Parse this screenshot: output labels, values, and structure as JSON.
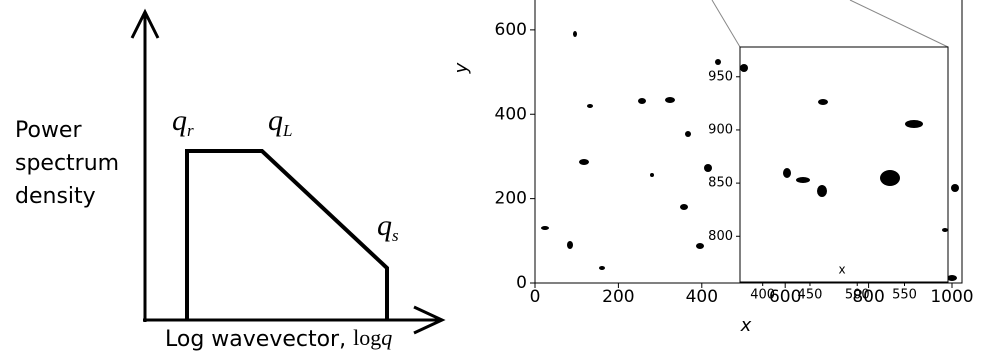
{
  "diagram": {
    "y_label": [
      "Power",
      "spectrum",
      "density"
    ],
    "x_label": "Log wavevector,",
    "x_label_math": {
      "function": "log",
      "variable": "q"
    },
    "points": [
      {
        "symbol": "q",
        "subscript": "r"
      },
      {
        "symbol": "q",
        "subscript": "L"
      },
      {
        "symbol": "q",
        "subscript": "s"
      }
    ]
  },
  "chart_data": {
    "type": "image",
    "xlabel": "x",
    "ylabel": "y",
    "xlim": [
      0,
      1024
    ],
    "ylim": [
      0,
      1024
    ],
    "xticks": [
      0,
      200,
      400,
      600,
      800,
      1000
    ],
    "yticks": [
      0,
      200,
      400,
      600
    ],
    "inset": {
      "xlabel": "x",
      "xlim": [
        376,
        596
      ],
      "ylim": [
        757,
        978
      ],
      "xticks": [
        400,
        450,
        500,
        550
      ],
      "yticks": [
        800,
        850,
        900,
        950
      ]
    }
  }
}
